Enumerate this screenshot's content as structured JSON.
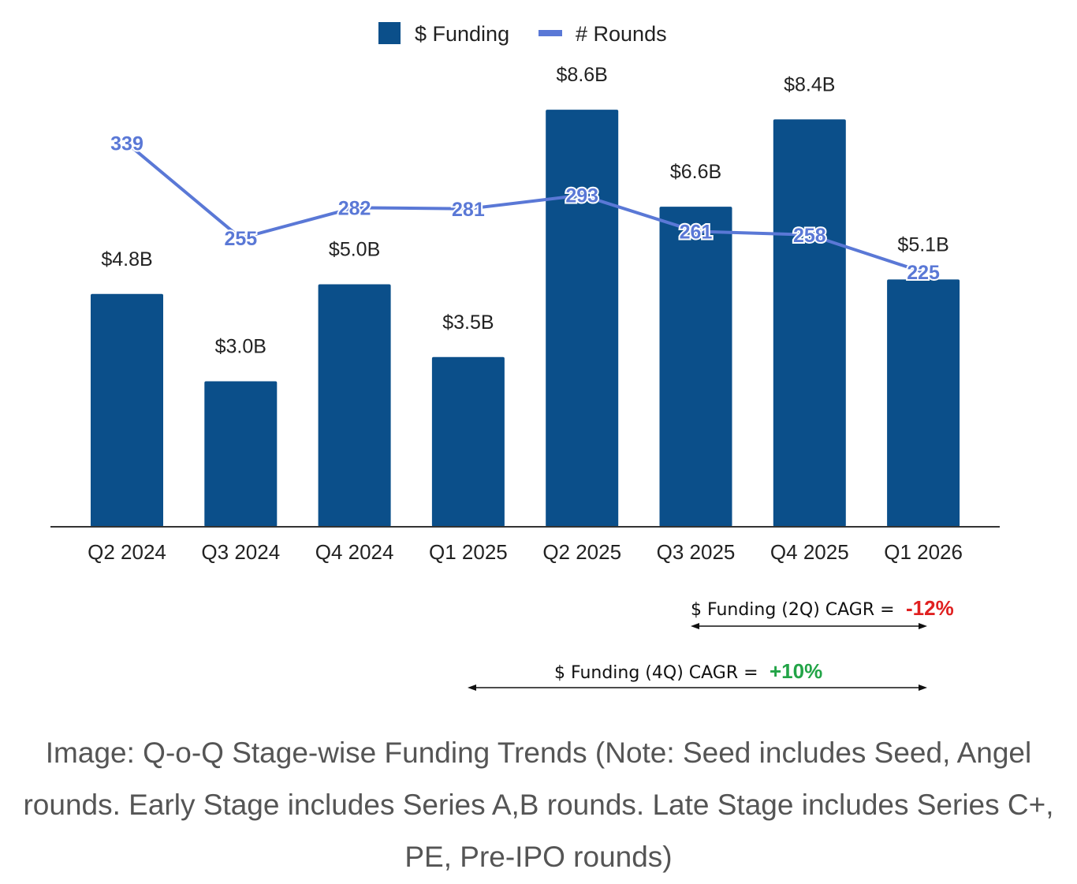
{
  "chart_data": {
    "type": "bar",
    "categories": [
      "Q2 2024",
      "Q3 2024",
      "Q4 2024",
      "Q1 2025",
      "Q2 2025",
      "Q3 2025",
      "Q4 2025",
      "Q1 2026"
    ],
    "series": [
      {
        "name": "$ Funding",
        "type": "bar",
        "values": [
          4.8,
          3.0,
          5.0,
          3.5,
          8.6,
          6.6,
          8.4,
          5.1
        ],
        "labels": [
          "$4.8B",
          "$3.0B",
          "$5.0B",
          "$3.5B",
          "$8.6B",
          "$6.6B",
          "$8.4B",
          "$5.1B"
        ],
        "color": "#0b4f8a"
      },
      {
        "name": "# Rounds",
        "type": "line",
        "values": [
          339,
          255,
          282,
          281,
          293,
          261,
          258,
          225
        ],
        "labels": [
          "339",
          "255",
          "282",
          "281",
          "293",
          "261",
          "258",
          "225"
        ],
        "color": "#5a78d6"
      }
    ],
    "ylim": [
      0,
      10
    ],
    "y2lim": [
      0,
      400
    ],
    "legend": "top-center",
    "grid": false
  },
  "annotations": {
    "cagr_2q": {
      "label": "$ Funding (2Q) CAGR =",
      "value": "-12%"
    },
    "cagr_4q": {
      "label": "$ Funding (4Q) CAGR =",
      "value": "+10%"
    }
  },
  "caption": "Image: Q-o-Q Stage-wise Funding Trends (Note: Seed includes Seed, Angel rounds. Early Stage includes Series A,B rounds. Late Stage includes Series C+, PE, Pre-IPO rounds)"
}
